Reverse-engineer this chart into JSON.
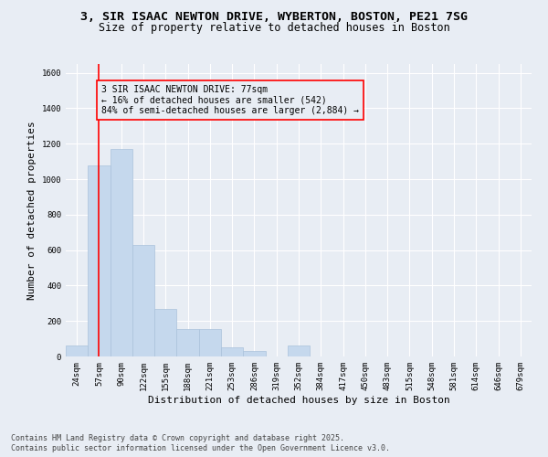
{
  "title_line1": "3, SIR ISAAC NEWTON DRIVE, WYBERTON, BOSTON, PE21 7SG",
  "title_line2": "Size of property relative to detached houses in Boston",
  "xlabel": "Distribution of detached houses by size in Boston",
  "ylabel": "Number of detached properties",
  "categories": [
    "24sqm",
    "57sqm",
    "90sqm",
    "122sqm",
    "155sqm",
    "188sqm",
    "221sqm",
    "253sqm",
    "286sqm",
    "319sqm",
    "352sqm",
    "384sqm",
    "417sqm",
    "450sqm",
    "483sqm",
    "515sqm",
    "548sqm",
    "581sqm",
    "614sqm",
    "646sqm",
    "679sqm"
  ],
  "values": [
    60,
    1080,
    1170,
    630,
    270,
    155,
    155,
    50,
    30,
    0,
    60,
    0,
    0,
    0,
    0,
    0,
    0,
    0,
    0,
    0,
    0
  ],
  "bar_color": "#c5d8ed",
  "bar_edge_color": "#aac2db",
  "red_line_x": 1.0,
  "annotation_box_text": "3 SIR ISAAC NEWTON DRIVE: 77sqm\n← 16% of detached houses are smaller (542)\n84% of semi-detached houses are larger (2,884) →",
  "ylim": [
    0,
    1650
  ],
  "yticks": [
    0,
    200,
    400,
    600,
    800,
    1000,
    1200,
    1400,
    1600
  ],
  "background_color": "#e8edf4",
  "grid_color": "#ffffff",
  "footer_line1": "Contains HM Land Registry data © Crown copyright and database right 2025.",
  "footer_line2": "Contains public sector information licensed under the Open Government Licence v3.0.",
  "title_fontsize": 9.5,
  "subtitle_fontsize": 8.5,
  "axis_label_fontsize": 8,
  "tick_fontsize": 6.5,
  "annotation_fontsize": 7,
  "footer_fontsize": 6
}
